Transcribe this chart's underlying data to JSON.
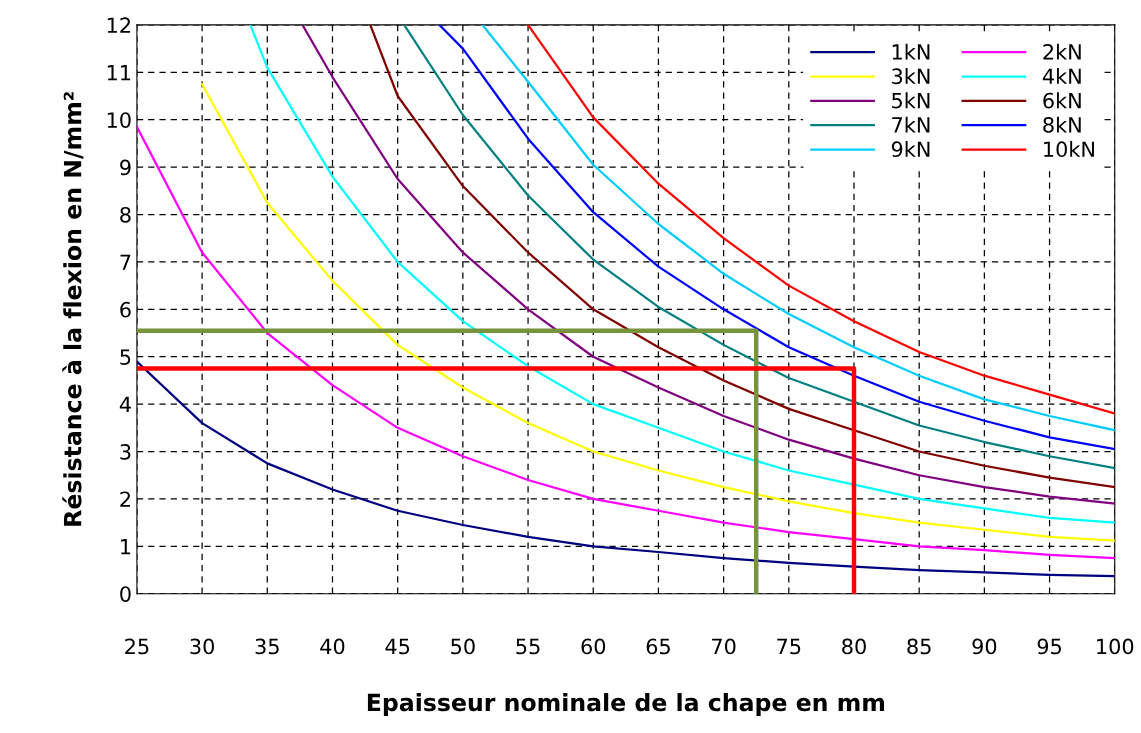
{
  "chart_data": {
    "type": "line",
    "xlabel": "Epaisseur nominale de la chape en mm",
    "ylabel": "Résistance à la flexion en N/mm²",
    "xlim": [
      25,
      100
    ],
    "ylim": [
      0,
      12
    ],
    "xticks": [
      25,
      30,
      35,
      40,
      45,
      50,
      55,
      60,
      65,
      70,
      75,
      80,
      85,
      90,
      95,
      100
    ],
    "yticks": [
      0,
      1,
      2,
      3,
      4,
      5,
      6,
      7,
      8,
      9,
      10,
      11,
      12
    ],
    "grid": true,
    "legend": "top right",
    "line_style": "solid",
    "marker": "none",
    "series": [
      {
        "name": "1kN",
        "color": "#000080",
        "x": [
          25,
          30,
          35,
          40,
          45,
          50,
          55,
          60,
          65,
          70,
          75,
          80,
          85,
          90,
          95,
          100
        ],
        "values": [
          4.9,
          3.6,
          2.75,
          2.2,
          1.75,
          1.45,
          1.2,
          1.0,
          0.88,
          0.75,
          0.65,
          0.57,
          0.5,
          0.45,
          0.4,
          0.37
        ]
      },
      {
        "name": "2kN",
        "color": "#ff00ff",
        "x": [
          25,
          30,
          35,
          40,
          45,
          50,
          55,
          60,
          65,
          70,
          75,
          80,
          85,
          90,
          95,
          100
        ],
        "values": [
          9.85,
          7.2,
          5.5,
          4.4,
          3.5,
          2.9,
          2.4,
          2.0,
          1.75,
          1.5,
          1.3,
          1.15,
          1.0,
          0.92,
          0.82,
          0.75
        ]
      },
      {
        "name": "3kN",
        "color": "#ffff00",
        "x": [
          30,
          35,
          40,
          45,
          50,
          55,
          60,
          65,
          70,
          75,
          80,
          85,
          90,
          95,
          100
        ],
        "values": [
          10.75,
          8.25,
          6.6,
          5.25,
          4.35,
          3.6,
          3.0,
          2.6,
          2.25,
          1.95,
          1.7,
          1.5,
          1.35,
          1.2,
          1.12
        ]
      },
      {
        "name": "4kN",
        "color": "#00ffff",
        "x": [
          33.7,
          35,
          40,
          45,
          50,
          55,
          60,
          65,
          70,
          75,
          80,
          85,
          90,
          95,
          100
        ],
        "values": [
          12,
          11.1,
          8.8,
          7.0,
          5.75,
          4.8,
          4.0,
          3.5,
          3.0,
          2.6,
          2.3,
          2.0,
          1.8,
          1.6,
          1.5
        ]
      },
      {
        "name": "5kN",
        "color": "#800080",
        "x": [
          37.7,
          40,
          45,
          50,
          55,
          60,
          65,
          70,
          75,
          80,
          85,
          90,
          95,
          100
        ],
        "values": [
          12,
          10.9,
          8.75,
          7.2,
          6.0,
          5.0,
          4.35,
          3.75,
          3.25,
          2.85,
          2.5,
          2.25,
          2.05,
          1.9
        ]
      },
      {
        "name": "6kN",
        "color": "#800000",
        "x": [
          42.9,
          45,
          50,
          55,
          60,
          65,
          70,
          75,
          80,
          85,
          90,
          95,
          100
        ],
        "values": [
          12,
          10.5,
          8.6,
          7.2,
          6.0,
          5.2,
          4.5,
          3.9,
          3.45,
          3.0,
          2.7,
          2.45,
          2.25
        ]
      },
      {
        "name": "7kN",
        "color": "#008080",
        "x": [
          45.5,
          50,
          55,
          60,
          65,
          70,
          75,
          80,
          85,
          90,
          95,
          100
        ],
        "values": [
          12,
          10.1,
          8.4,
          7.05,
          6.05,
          5.25,
          4.55,
          4.05,
          3.55,
          3.2,
          2.9,
          2.65
        ]
      },
      {
        "name": "8kN",
        "color": "#0000ff",
        "x": [
          48.2,
          50,
          55,
          60,
          65,
          70,
          75,
          80,
          85,
          90,
          95,
          100
        ],
        "values": [
          12,
          11.5,
          9.6,
          8.05,
          6.9,
          6.0,
          5.2,
          4.6,
          4.05,
          3.65,
          3.3,
          3.05
        ]
      },
      {
        "name": "9kN",
        "color": "#00ccff",
        "x": [
          51.5,
          55,
          60,
          65,
          70,
          75,
          80,
          85,
          90,
          95,
          100
        ],
        "values": [
          12,
          10.8,
          9.05,
          7.8,
          6.75,
          5.9,
          5.2,
          4.6,
          4.1,
          3.75,
          3.45
        ]
      },
      {
        "name": "10kN",
        "color": "#ff0000",
        "x": [
          55,
          60,
          65,
          70,
          75,
          80,
          85,
          90,
          95,
          100
        ],
        "values": [
          12,
          10.05,
          8.65,
          7.5,
          6.5,
          5.75,
          5.1,
          4.6,
          4.2,
          3.8
        ]
      },
      {
        "color": "#77933c",
        "x": [
          25,
          72.5,
          72.5
        ],
        "values": [
          5.55,
          5.55,
          0
        ]
      },
      {
        "color": "#ff0000",
        "x": [
          25,
          80,
          80
        ],
        "values": [
          4.75,
          4.75,
          0
        ]
      }
    ]
  }
}
